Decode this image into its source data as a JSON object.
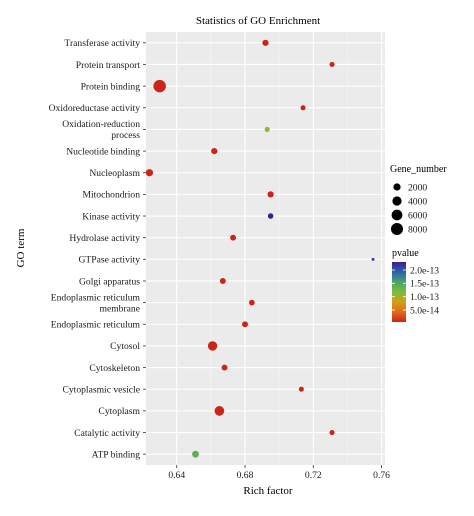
{
  "chart_data": {
    "type": "scatter",
    "title": "Statistics of GO Enrichment",
    "xlabel": "Rich factor",
    "ylabel": "GO term",
    "xlim": [
      0.622,
      0.762
    ],
    "xticks": [
      0.64,
      0.68,
      0.72,
      0.76
    ],
    "xtick_labels": [
      "0.64",
      "0.68",
      "0.72",
      "0.76"
    ],
    "grid": true,
    "panel_background": "#ebebeb",
    "grid_color": "#ffffff",
    "categories": [
      "Transferase activity",
      "Protein transport",
      "Protein binding",
      "Oxidoreductase activity",
      "Oxidation-reduction\nprocess",
      "Nucleotide binding",
      "Nucleoplasm",
      "Mitochondrion",
      "Kinase activity",
      "Hydrolase activity",
      "GTPase activity",
      "Golgi apparatus",
      "Endoplasmic reticulum\nmembrane",
      "Endoplasmic reticulum",
      "Cytosol",
      "Cytoskeleton",
      "Cytoplasmic vesicle",
      "Cytoplasm",
      "Catalytic activity",
      "ATP binding"
    ],
    "points": [
      {
        "term": "Transferase activity",
        "rich_factor": 0.692,
        "gene_number": 1300,
        "pvalue": 5e-15
      },
      {
        "term": "Protein transport",
        "rich_factor": 0.731,
        "gene_number": 700,
        "pvalue": 5e-15
      },
      {
        "term": "Protein binding",
        "rich_factor": 0.63,
        "gene_number": 8800,
        "pvalue": 5e-15
      },
      {
        "term": "Oxidoreductase activity",
        "rich_factor": 0.714,
        "gene_number": 700,
        "pvalue": 5e-15
      },
      {
        "term": "Oxidation-reduction\nprocess",
        "rich_factor": 0.693,
        "gene_number": 700,
        "pvalue": 1.1e-13
      },
      {
        "term": "Nucleotide binding",
        "rich_factor": 0.662,
        "gene_number": 1300,
        "pvalue": 5e-15
      },
      {
        "term": "Nucleoplasm",
        "rich_factor": 0.624,
        "gene_number": 2000,
        "pvalue": 5e-15
      },
      {
        "term": "Mitochondrion",
        "rich_factor": 0.695,
        "gene_number": 1300,
        "pvalue": 5e-15
      },
      {
        "term": "Kinase activity",
        "rich_factor": 0.695,
        "gene_number": 900,
        "pvalue": 2.3e-13
      },
      {
        "term": "Hydrolase activity",
        "rich_factor": 0.673,
        "gene_number": 1100,
        "pvalue": 5e-15
      },
      {
        "term": "GTPase activity",
        "rich_factor": 0.755,
        "gene_number": 300,
        "pvalue": 2.1e-13
      },
      {
        "term": "Golgi apparatus",
        "rich_factor": 0.667,
        "gene_number": 1100,
        "pvalue": 5e-15
      },
      {
        "term": "Endoplasmic reticulum\nmembrane",
        "rich_factor": 0.684,
        "gene_number": 1000,
        "pvalue": 5e-15
      },
      {
        "term": "Endoplasmic reticulum",
        "rich_factor": 0.68,
        "gene_number": 1100,
        "pvalue": 5e-15
      },
      {
        "term": "Cytosol",
        "rich_factor": 0.661,
        "gene_number": 4200,
        "pvalue": 5e-15
      },
      {
        "term": "Cytoskeleton",
        "rich_factor": 0.668,
        "gene_number": 1100,
        "pvalue": 5e-15
      },
      {
        "term": "Cytoplasmic vesicle",
        "rich_factor": 0.713,
        "gene_number": 700,
        "pvalue": 5e-15
      },
      {
        "term": "Cytoplasm",
        "rich_factor": 0.665,
        "gene_number": 4500,
        "pvalue": 5e-15
      },
      {
        "term": "Catalytic activity",
        "rich_factor": 0.731,
        "gene_number": 700,
        "pvalue": 5e-15
      },
      {
        "term": "ATP binding",
        "rich_factor": 0.651,
        "gene_number": 1700,
        "pvalue": 1.4e-13
      }
    ],
    "size_legend": {
      "title": "Gene_number",
      "breaks": [
        2000,
        4000,
        6000,
        8000
      ],
      "labels": [
        "2000",
        "4000",
        "6000",
        "8000"
      ]
    },
    "color_legend": {
      "title": "pvalue",
      "range": [
        5e-15,
        2.3e-13
      ],
      "breaks": [
        2e-13,
        1.5e-13,
        1e-13,
        5e-14
      ],
      "labels": [
        "2.0e-13",
        "1.5e-13",
        "1.0e-13",
        "5.0e-14"
      ],
      "gradient_high_to_low": [
        "#3b1f8f",
        "#2e5fb0",
        "#4aa56a",
        "#7dbb3c",
        "#d4a017",
        "#e06a1e",
        "#cc2418"
      ]
    }
  }
}
